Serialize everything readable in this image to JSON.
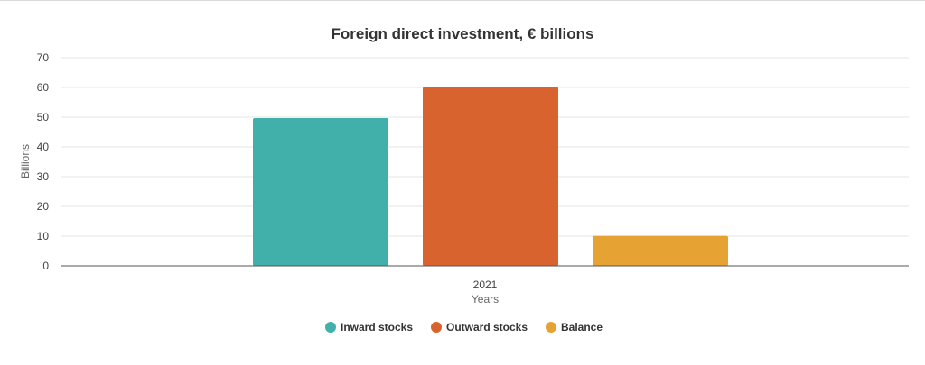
{
  "chart_data": {
    "type": "bar",
    "title": "Foreign direct investment, € billions",
    "xlabel": "Years",
    "ylabel": "Billions",
    "categories": [
      "2021"
    ],
    "ylim": [
      0,
      70
    ],
    "yticks": [
      "0",
      "10",
      "20",
      "30",
      "40",
      "50",
      "60",
      "70"
    ],
    "grid": true,
    "legend_position": "bottom",
    "series": [
      {
        "name": "Inward stocks",
        "values": [
          49.7
        ],
        "color": "#42b0aa"
      },
      {
        "name": "Outward stocks",
        "values": [
          60.2
        ],
        "color": "#d9632e"
      },
      {
        "name": "Balance",
        "values": [
          10.1
        ],
        "color": "#e6a333"
      }
    ]
  }
}
